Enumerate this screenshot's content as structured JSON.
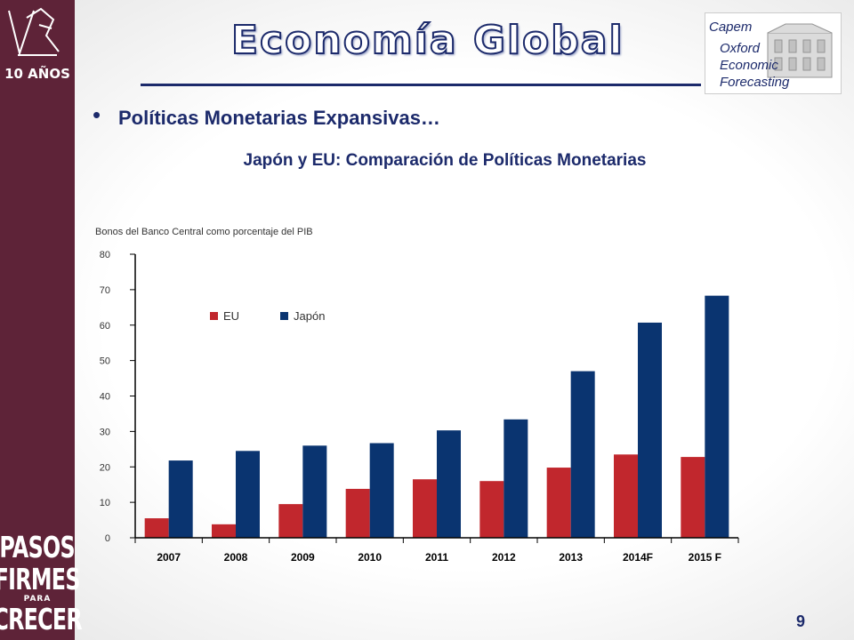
{
  "sidebar": {
    "logo_text": "10 AÑOS",
    "motto": [
      "PASOS",
      "FIRMES",
      "PARA",
      "CRECER"
    ]
  },
  "header": {
    "title": "Economía Global",
    "logo": {
      "lines": [
        "Capem",
        "Oxford",
        "Economic",
        "Forecasting"
      ]
    }
  },
  "subtitle": "Políticas Monetarias Expansivas…",
  "page_number": "9",
  "colors": {
    "eu": "#c1272d",
    "japan": "#0a3470",
    "navy": "#1c2a6b",
    "sidebar": "#5e2338"
  },
  "chart_data": {
    "type": "bar",
    "title": "Japón y EU: Comparación de Políticas Monetarias",
    "subtitle": "Bonos del Banco Central como porcentaje del PIB",
    "categories": [
      "2007",
      "2008",
      "2009",
      "2010",
      "2011",
      "2012",
      "2013",
      "2014F",
      "2015 F"
    ],
    "series": [
      {
        "name": "EU",
        "color": "#c1272d",
        "values": [
          5.5,
          3.8,
          9.5,
          13.8,
          16.5,
          16,
          19.8,
          23.5,
          22.8
        ]
      },
      {
        "name": "Japón",
        "color": "#0a3470",
        "values": [
          21.8,
          24.5,
          26,
          26.7,
          30.3,
          33.4,
          47,
          60.7,
          68.3
        ]
      }
    ],
    "yticks": [
      0,
      10,
      20,
      30,
      40,
      50,
      60,
      70,
      80
    ],
    "ylim": [
      0,
      80
    ],
    "legend_position": "top-left",
    "grid": false
  }
}
